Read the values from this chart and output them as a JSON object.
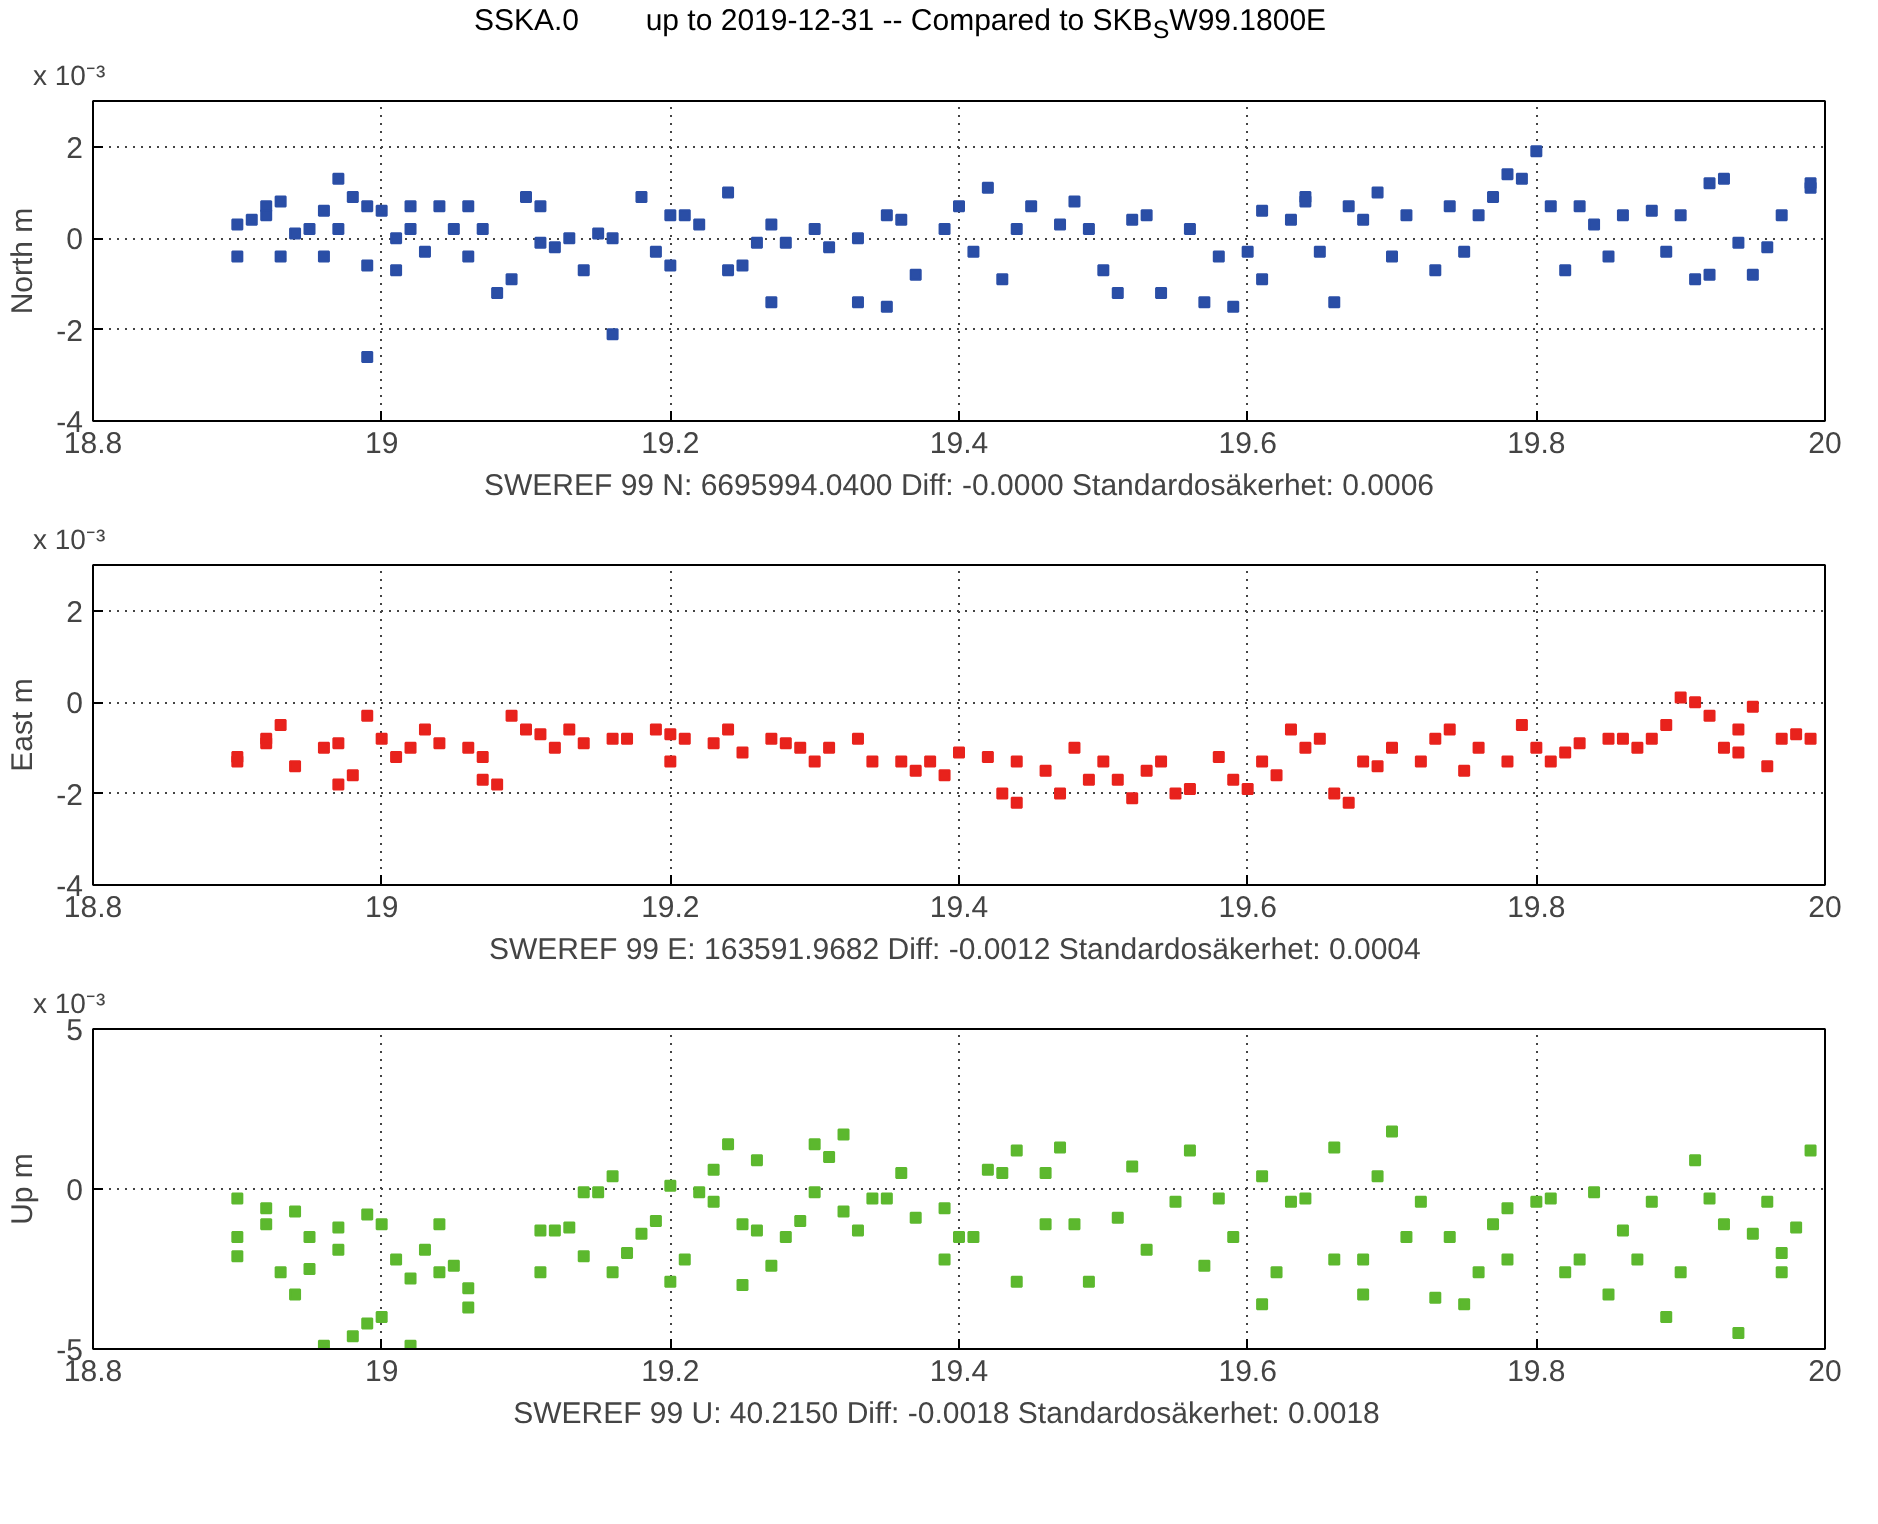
{
  "chart_data": [
    {
      "type": "scatter",
      "title": "SSKA.0        up to 2019-12-31 -- Compared to SKB$_{S}$W99.1800E",
      "xlabel": "SWEREF 99 N: 6695994.0400 Diff: -0.0000 Standardosäkerhet: 0.0006",
      "ylabel": "North m",
      "annotations": [
        "x 10⁻³"
      ],
      "xlim": [
        18.8,
        20
      ],
      "xticks": [
        18.8,
        19,
        19.2,
        19.4,
        19.6,
        19.8,
        20
      ],
      "ylim": [
        -4,
        3
      ],
      "yticks": [
        -4,
        -2,
        0,
        2
      ],
      "grid": true,
      "marker": "square",
      "series": [
        {
          "color": "#2a4ea6",
          "x": [
            18.9,
            18.9,
            18.91,
            18.92,
            18.92,
            18.93,
            18.93,
            18.94,
            18.95,
            18.96,
            18.96,
            18.97,
            18.97,
            18.98,
            18.99,
            18.99,
            18.99,
            19.0,
            19.01,
            19.01,
            19.02,
            19.02,
            19.03,
            19.04,
            19.05,
            19.06,
            19.06,
            19.07,
            19.08,
            19.09,
            19.1,
            19.11,
            19.11,
            19.12,
            19.13,
            19.14,
            19.15,
            19.16,
            19.16,
            19.18,
            19.19,
            19.2,
            19.2,
            19.21,
            19.22,
            19.24,
            19.24,
            19.25,
            19.26,
            19.27,
            19.27,
            19.28,
            19.3,
            19.31,
            19.33,
            19.33,
            19.35,
            19.35,
            19.36,
            19.37,
            19.39,
            19.4,
            19.41,
            19.42,
            19.43,
            19.44,
            19.45,
            19.47,
            19.48,
            19.49,
            19.5,
            19.51,
            19.52,
            19.53,
            19.54,
            19.56,
            19.57,
            19.58,
            19.59,
            19.6,
            19.61,
            19.61,
            19.63,
            19.64,
            19.64,
            19.65,
            19.66,
            19.67,
            19.68,
            19.69,
            19.7,
            19.71,
            19.73,
            19.74,
            19.75,
            19.76,
            19.77,
            19.78,
            19.79,
            19.8,
            19.81,
            19.82,
            19.83,
            19.84,
            19.85,
            19.86,
            19.88,
            19.89,
            19.9,
            19.91,
            19.92,
            19.92,
            19.93,
            19.94,
            19.95,
            19.96,
            19.97,
            19.99,
            19.99
          ],
          "values": [
            0.3,
            -0.4,
            0.4,
            0.7,
            0.5,
            0.8,
            -0.4,
            0.1,
            0.2,
            0.6,
            -0.4,
            1.3,
            0.2,
            0.9,
            0.7,
            -2.6,
            -0.6,
            0.6,
            0.0,
            -0.7,
            0.7,
            0.2,
            -0.3,
            0.7,
            0.2,
            0.7,
            -0.4,
            0.2,
            -1.2,
            -0.9,
            0.9,
            0.7,
            -0.1,
            -0.2,
            0.0,
            -0.7,
            0.1,
            -2.1,
            0.0,
            0.9,
            -0.3,
            -0.6,
            0.5,
            0.5,
            0.3,
            1.0,
            -0.7,
            -0.6,
            -0.1,
            -1.4,
            0.3,
            -0.1,
            0.2,
            -0.2,
            -1.4,
            0.0,
            0.5,
            -1.5,
            0.4,
            -0.8,
            0.2,
            0.7,
            -0.3,
            1.1,
            -0.9,
            0.2,
            0.7,
            0.3,
            0.8,
            0.2,
            -0.7,
            -1.2,
            0.4,
            0.5,
            -1.2,
            0.2,
            -1.4,
            -0.4,
            -1.5,
            -0.3,
            0.6,
            -0.9,
            0.4,
            0.8,
            0.9,
            -0.3,
            -1.4,
            0.7,
            0.4,
            1.0,
            -0.4,
            0.5,
            -0.7,
            0.7,
            -0.3,
            0.5,
            0.9,
            1.4,
            1.3,
            1.9,
            0.7,
            -0.7,
            0.7,
            0.3,
            -0.4,
            0.5,
            0.6,
            -0.3,
            0.5,
            -0.9,
            -0.8,
            1.2,
            1.3,
            -0.1,
            -0.8,
            -0.2,
            0.5,
            1.1,
            1.2
          ]
        }
      ]
    },
    {
      "type": "scatter",
      "xlabel": "SWEREF 99 E:  163591.9682 Diff: -0.0012 Standardosäkerhet: 0.0004",
      "ylabel": "East m",
      "annotations": [
        "x 10⁻³"
      ],
      "xlim": [
        18.8,
        20
      ],
      "xticks": [
        18.8,
        19,
        19.2,
        19.4,
        19.6,
        19.8,
        20
      ],
      "ylim": [
        -4,
        3
      ],
      "yticks": [
        -4,
        -2,
        0,
        2
      ],
      "grid": true,
      "marker": "square",
      "series": [
        {
          "color": "#e8221c",
          "x": [
            18.9,
            18.9,
            18.92,
            18.92,
            18.93,
            18.94,
            18.96,
            18.97,
            18.97,
            18.98,
            18.99,
            19.0,
            19.01,
            19.02,
            19.03,
            19.04,
            19.06,
            19.07,
            19.07,
            19.08,
            19.09,
            19.1,
            19.11,
            19.12,
            19.13,
            19.14,
            19.16,
            19.17,
            19.19,
            19.2,
            19.2,
            19.21,
            19.23,
            19.24,
            19.25,
            19.27,
            19.28,
            19.29,
            19.3,
            19.31,
            19.33,
            19.34,
            19.36,
            19.37,
            19.38,
            19.39,
            19.4,
            19.42,
            19.43,
            19.44,
            19.44,
            19.46,
            19.47,
            19.48,
            19.49,
            19.5,
            19.51,
            19.52,
            19.53,
            19.54,
            19.55,
            19.56,
            19.58,
            19.59,
            19.6,
            19.61,
            19.62,
            19.63,
            19.64,
            19.65,
            19.66,
            19.67,
            19.68,
            19.69,
            19.7,
            19.72,
            19.73,
            19.74,
            19.75,
            19.76,
            19.78,
            19.79,
            19.8,
            19.81,
            19.82,
            19.83,
            19.85,
            19.86,
            19.87,
            19.88,
            19.89,
            19.9,
            19.91,
            19.92,
            19.93,
            19.94,
            19.94,
            19.95,
            19.96,
            19.97,
            19.98,
            19.99
          ],
          "values": [
            -1.2,
            -1.3,
            -0.9,
            -0.8,
            -0.5,
            -1.4,
            -1.0,
            -1.8,
            -0.9,
            -1.6,
            -0.3,
            -0.8,
            -1.2,
            -1.0,
            -0.6,
            -0.9,
            -1.0,
            -1.2,
            -1.7,
            -1.8,
            -0.3,
            -0.6,
            -0.7,
            -1.0,
            -0.6,
            -0.9,
            -0.8,
            -0.8,
            -0.6,
            -0.7,
            -1.3,
            -0.8,
            -0.9,
            -0.6,
            -1.1,
            -0.8,
            -0.9,
            -1.0,
            -1.3,
            -1.0,
            -0.8,
            -1.3,
            -1.3,
            -1.5,
            -1.3,
            -1.6,
            -1.1,
            -1.2,
            -2.0,
            -2.2,
            -1.3,
            -1.5,
            -2.0,
            -1.0,
            -1.7,
            -1.3,
            -1.7,
            -2.1,
            -1.5,
            -1.3,
            -2.0,
            -1.9,
            -1.2,
            -1.7,
            -1.9,
            -1.3,
            -1.6,
            -0.6,
            -1.0,
            -0.8,
            -2.0,
            -2.2,
            -1.3,
            -1.4,
            -1.0,
            -1.3,
            -0.8,
            -0.6,
            -1.5,
            -1.0,
            -1.3,
            -0.5,
            -1.0,
            -1.3,
            -1.1,
            -0.9,
            -0.8,
            -0.8,
            -1.0,
            -0.8,
            -0.5,
            0.1,
            0.0,
            -0.3,
            -1.0,
            -0.6,
            -1.1,
            -0.1,
            -1.4,
            -0.8,
            -0.7,
            -0.8
          ]
        }
      ]
    },
    {
      "type": "scatter",
      "xlabel": "SWEREF 99 U:    40.2150 Diff: -0.0018 Standardosäkerhet: 0.0018",
      "ylabel": "Up m",
      "annotations": [
        "x 10⁻³"
      ],
      "xlim": [
        18.8,
        20
      ],
      "xticks": [
        18.8,
        19,
        19.2,
        19.4,
        19.6,
        19.8,
        20
      ],
      "ylim": [
        -5,
        5
      ],
      "yticks": [
        -5,
        0,
        5
      ],
      "grid": true,
      "marker": "square",
      "series": [
        {
          "color": "#5cb82e",
          "x": [
            18.9,
            18.9,
            18.9,
            18.92,
            18.92,
            18.93,
            18.94,
            18.94,
            18.95,
            18.95,
            18.96,
            18.97,
            18.97,
            18.98,
            18.99,
            18.99,
            19.0,
            19.0,
            19.01,
            19.02,
            19.02,
            19.03,
            19.04,
            19.04,
            19.05,
            19.06,
            19.06,
            19.11,
            19.11,
            19.12,
            19.13,
            19.14,
            19.14,
            19.15,
            19.16,
            19.16,
            19.17,
            19.18,
            19.19,
            19.2,
            19.2,
            19.21,
            19.22,
            19.23,
            19.23,
            19.24,
            19.25,
            19.25,
            19.26,
            19.26,
            19.27,
            19.28,
            19.29,
            19.3,
            19.3,
            19.31,
            19.32,
            19.32,
            19.33,
            19.34,
            19.35,
            19.36,
            19.37,
            19.39,
            19.39,
            19.4,
            19.41,
            19.42,
            19.43,
            19.44,
            19.44,
            19.46,
            19.46,
            19.47,
            19.48,
            19.49,
            19.51,
            19.52,
            19.53,
            19.55,
            19.56,
            19.57,
            19.58,
            19.59,
            19.61,
            19.61,
            19.62,
            19.63,
            19.64,
            19.66,
            19.66,
            19.68,
            19.68,
            19.69,
            19.7,
            19.71,
            19.72,
            19.73,
            19.74,
            19.75,
            19.76,
            19.77,
            19.78,
            19.78,
            19.8,
            19.81,
            19.82,
            19.83,
            19.84,
            19.85,
            19.86,
            19.87,
            19.88,
            19.89,
            19.9,
            19.91,
            19.92,
            19.93,
            19.94,
            19.95,
            19.96,
            19.97,
            19.97,
            19.98,
            19.99
          ],
          "values": [
            -0.3,
            -2.1,
            -1.5,
            -1.1,
            -0.6,
            -2.6,
            -0.7,
            -3.3,
            -1.5,
            -2.5,
            -4.9,
            -1.9,
            -1.2,
            -4.6,
            -0.8,
            -4.2,
            -4.0,
            -1.1,
            -2.2,
            -2.8,
            -4.9,
            -1.9,
            -2.6,
            -1.1,
            -2.4,
            -3.1,
            -3.7,
            -2.6,
            -1.3,
            -1.3,
            -1.2,
            -0.1,
            -2.1,
            -0.1,
            0.4,
            -2.6,
            -2.0,
            -1.4,
            -1.0,
            -2.9,
            0.1,
            -2.2,
            -0.1,
            -0.4,
            0.6,
            1.4,
            -3.0,
            -1.1,
            0.9,
            -1.3,
            -2.4,
            -1.5,
            -1.0,
            -0.1,
            1.4,
            1.0,
            -0.7,
            1.7,
            -1.3,
            -0.3,
            -0.3,
            0.5,
            -0.9,
            -2.2,
            -0.6,
            -1.5,
            -1.5,
            0.6,
            0.5,
            1.2,
            -2.9,
            -1.1,
            0.5,
            1.3,
            -1.1,
            -2.9,
            -0.9,
            0.7,
            -1.9,
            -0.4,
            1.2,
            -2.4,
            -0.3,
            -1.5,
            -3.6,
            0.4,
            -2.6,
            -0.4,
            -0.3,
            1.3,
            -2.2,
            -3.3,
            -2.2,
            0.4,
            1.8,
            -1.5,
            -0.4,
            -3.4,
            -1.5,
            -3.6,
            -2.6,
            -1.1,
            -2.2,
            -0.6,
            -0.4,
            -0.3,
            -2.6,
            -2.2,
            -0.1,
            -3.3,
            -1.3,
            -2.2,
            -0.4,
            -4.0,
            -2.6,
            0.9,
            -0.3,
            -1.1,
            -4.5,
            -1.4,
            -0.4,
            -2.0,
            -2.6,
            -1.2,
            1.2
          ]
        }
      ]
    }
  ]
}
